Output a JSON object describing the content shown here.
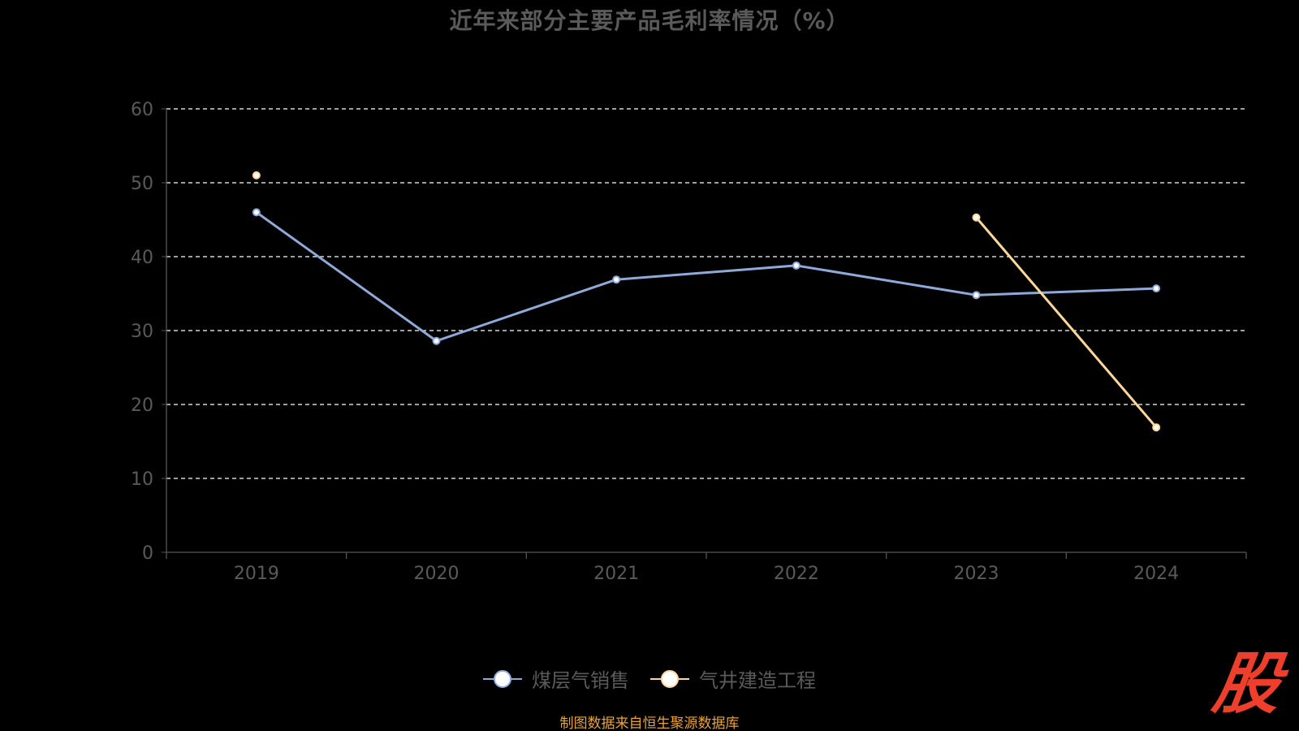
{
  "chart_data": {
    "type": "line",
    "title": "近年来部分主要产品毛利率情况（%）",
    "categories": [
      "2019",
      "2020",
      "2021",
      "2022",
      "2023",
      "2024"
    ],
    "ylim": [
      0,
      60
    ],
    "yticks": [
      0,
      10,
      20,
      30,
      40,
      50,
      60
    ],
    "grid": true,
    "legend_position": "bottom-center",
    "series": [
      {
        "name": "煤层气销售",
        "color": "#8fa9d8",
        "values": [
          46.0,
          28.6,
          36.9,
          38.8,
          34.8,
          35.7
        ]
      },
      {
        "name": "气井建造工程",
        "color": "#fbd89a",
        "values": [
          51.0,
          null,
          null,
          null,
          45.3,
          16.9
        ]
      }
    ]
  },
  "source_note": "制图数据来自恒生聚源数据库",
  "brand": {
    "mark": "股",
    "color": "#ee3f2c"
  }
}
